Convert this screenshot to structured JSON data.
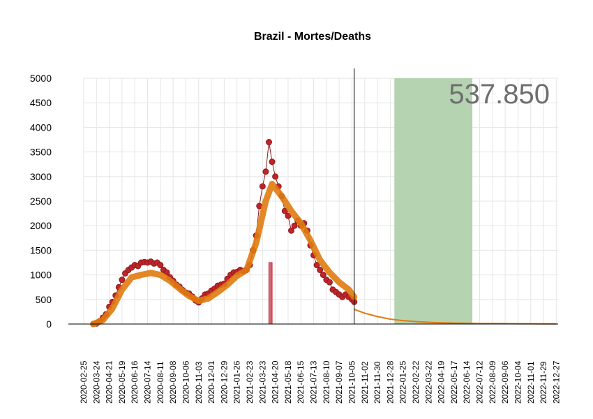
{
  "chart_data": {
    "type": "line",
    "title": "Brazil - Mortes/Deaths",
    "xlabel": "",
    "ylabel": "",
    "ylim": [
      0,
      5000
    ],
    "yticks": [
      0,
      500,
      1000,
      1500,
      2000,
      2500,
      3000,
      3500,
      4000,
      4500,
      5000
    ],
    "x_range": [
      "2020-02-25",
      "2022-12-31"
    ],
    "x_tick_labels": [
      "2020-02-25",
      "2020-03-24",
      "2020-04-21",
      "2020-05-19",
      "2020-06-16",
      "2020-07-14",
      "2020-08-11",
      "2020-09-08",
      "2020-10-06",
      "2020-11-03",
      "2020-12-01",
      "2020-12-29",
      "2021-01-26",
      "2021-02-23",
      "2021-03-23",
      "2021-04-20",
      "2021-05-18",
      "2021-06-15",
      "2021-07-13",
      "2021-08-10",
      "2021-09-07",
      "2021-10-05",
      "2021-11-02",
      "2021-11-30",
      "2021-12-28",
      "2022-01-25",
      "2022-02-22",
      "2022-03-22",
      "2022-04-19",
      "2022-05-17",
      "2022-06-14",
      "2022-07-12",
      "2022-08-09",
      "2022-09-06",
      "2022-10-04",
      "2022-11-01",
      "2022-11-29",
      "2022-12-27"
    ],
    "grid": true,
    "total_label": "537.850",
    "last_observed_date": "2021-10-10",
    "highlight_bar": {
      "from": "2021-04-06",
      "to": "2021-04-13",
      "value": 1250,
      "color": "#d36b77"
    },
    "shaded_region": {
      "from": "2022-01-06",
      "to": "2022-06-26",
      "color": "#b5d3b1"
    },
    "series": [
      {
        "kind": "observed_daily",
        "color": "#8b1a1a",
        "fill": "#c0242a",
        "points": [
          [
            "2020-03-17",
            1
          ],
          [
            "2020-03-24",
            10
          ],
          [
            "2020-03-31",
            60
          ],
          [
            "2020-04-07",
            130
          ],
          [
            "2020-04-14",
            200
          ],
          [
            "2020-04-21",
            350
          ],
          [
            "2020-04-28",
            450
          ],
          [
            "2020-05-05",
            580
          ],
          [
            "2020-05-12",
            750
          ],
          [
            "2020-05-19",
            900
          ],
          [
            "2020-05-26",
            1030
          ],
          [
            "2020-06-02",
            1100
          ],
          [
            "2020-06-09",
            1150
          ],
          [
            "2020-06-16",
            1200
          ],
          [
            "2020-06-23",
            1180
          ],
          [
            "2020-06-30",
            1250
          ],
          [
            "2020-07-07",
            1260
          ],
          [
            "2020-07-14",
            1250
          ],
          [
            "2020-07-21",
            1270
          ],
          [
            "2020-07-28",
            1230
          ],
          [
            "2020-08-04",
            1250
          ],
          [
            "2020-08-11",
            1200
          ],
          [
            "2020-08-18",
            1100
          ],
          [
            "2020-08-25",
            1050
          ],
          [
            "2020-09-01",
            950
          ],
          [
            "2020-09-08",
            880
          ],
          [
            "2020-09-15",
            800
          ],
          [
            "2020-09-22",
            760
          ],
          [
            "2020-09-29",
            690
          ],
          [
            "2020-10-06",
            640
          ],
          [
            "2020-10-13",
            620
          ],
          [
            "2020-10-20",
            560
          ],
          [
            "2020-10-27",
            480
          ],
          [
            "2020-11-03",
            440
          ],
          [
            "2020-11-10",
            520
          ],
          [
            "2020-11-17",
            600
          ],
          [
            "2020-11-24",
            620
          ],
          [
            "2020-12-01",
            680
          ],
          [
            "2020-12-08",
            720
          ],
          [
            "2020-12-15",
            780
          ],
          [
            "2020-12-22",
            800
          ],
          [
            "2020-12-29",
            820
          ],
          [
            "2021-01-05",
            920
          ],
          [
            "2021-01-12",
            1000
          ],
          [
            "2021-01-19",
            1050
          ],
          [
            "2021-01-26",
            1060
          ],
          [
            "2021-02-02",
            1100
          ],
          [
            "2021-02-09",
            1080
          ],
          [
            "2021-02-16",
            1100
          ],
          [
            "2021-02-23",
            1200
          ],
          [
            "2021-03-02",
            1500
          ],
          [
            "2021-03-09",
            1800
          ],
          [
            "2021-03-16",
            2400
          ],
          [
            "2021-03-23",
            2800
          ],
          [
            "2021-03-30",
            3100
          ],
          [
            "2021-04-06",
            3700
          ],
          [
            "2021-04-13",
            3300
          ],
          [
            "2021-04-20",
            3000
          ],
          [
            "2021-04-27",
            2800
          ],
          [
            "2021-05-04",
            2600
          ],
          [
            "2021-05-11",
            2300
          ],
          [
            "2021-05-18",
            2200
          ],
          [
            "2021-05-25",
            1900
          ],
          [
            "2021-06-01",
            2000
          ],
          [
            "2021-06-08",
            2100
          ],
          [
            "2021-06-15",
            2000
          ],
          [
            "2021-06-22",
            2050
          ],
          [
            "2021-06-29",
            1900
          ],
          [
            "2021-07-06",
            1600
          ],
          [
            "2021-07-13",
            1400
          ],
          [
            "2021-07-20",
            1200
          ],
          [
            "2021-07-27",
            1100
          ],
          [
            "2021-08-03",
            1000
          ],
          [
            "2021-08-10",
            900
          ],
          [
            "2021-08-17",
            850
          ],
          [
            "2021-08-24",
            700
          ],
          [
            "2021-08-31",
            650
          ],
          [
            "2021-09-07",
            600
          ],
          [
            "2021-09-14",
            550
          ],
          [
            "2021-09-21",
            600
          ],
          [
            "2021-09-28",
            550
          ],
          [
            "2021-10-05",
            500
          ],
          [
            "2021-10-10",
            450
          ]
        ]
      },
      {
        "kind": "moving_average",
        "color": "#e07b10",
        "points": [
          [
            "2020-03-17",
            0
          ],
          [
            "2020-04-07",
            80
          ],
          [
            "2020-04-28",
            320
          ],
          [
            "2020-05-19",
            700
          ],
          [
            "2020-06-09",
            950
          ],
          [
            "2020-06-30",
            1000
          ],
          [
            "2020-07-21",
            1040
          ],
          [
            "2020-08-11",
            1000
          ],
          [
            "2020-09-01",
            880
          ],
          [
            "2020-09-22",
            720
          ],
          [
            "2020-10-13",
            570
          ],
          [
            "2020-11-03",
            470
          ],
          [
            "2020-11-24",
            520
          ],
          [
            "2020-12-15",
            650
          ],
          [
            "2021-01-05",
            800
          ],
          [
            "2021-01-26",
            980
          ],
          [
            "2021-02-16",
            1100
          ],
          [
            "2021-03-09",
            1650
          ],
          [
            "2021-03-30",
            2500
          ],
          [
            "2021-04-13",
            2850
          ],
          [
            "2021-05-04",
            2600
          ],
          [
            "2021-05-25",
            2300
          ],
          [
            "2021-06-15",
            2050
          ],
          [
            "2021-07-06",
            1700
          ],
          [
            "2021-07-27",
            1300
          ],
          [
            "2021-08-17",
            1050
          ],
          [
            "2021-09-07",
            850
          ],
          [
            "2021-09-28",
            700
          ],
          [
            "2021-10-10",
            550
          ]
        ]
      },
      {
        "kind": "projection",
        "color": "#e07b10",
        "points": [
          [
            "2021-10-10",
            300
          ],
          [
            "2021-11-02",
            220
          ],
          [
            "2021-11-30",
            150
          ],
          [
            "2021-12-28",
            100
          ],
          [
            "2022-01-25",
            70
          ],
          [
            "2022-02-22",
            50
          ],
          [
            "2022-03-22",
            35
          ],
          [
            "2022-04-19",
            25
          ],
          [
            "2022-05-17",
            20
          ],
          [
            "2022-06-14",
            15
          ],
          [
            "2022-07-12",
            12
          ],
          [
            "2022-08-09",
            10
          ],
          [
            "2022-09-06",
            8
          ],
          [
            "2022-10-04",
            6
          ],
          [
            "2022-11-01",
            5
          ],
          [
            "2022-11-29",
            4
          ],
          [
            "2022-12-27",
            3
          ]
        ]
      }
    ]
  }
}
